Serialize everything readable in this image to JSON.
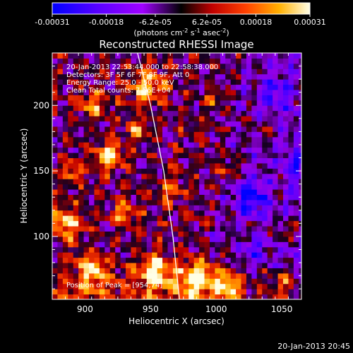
{
  "chart_data": {
    "type": "heatmap",
    "title": "Reconstructed RHESSI Image",
    "xlabel": "Heliocentric X (arcsec)",
    "ylabel": "Heliocentric Y (arcsec)",
    "xlim": [
      875,
      1065
    ],
    "ylim": [
      52,
      240
    ],
    "x_ticks": [
      900,
      950,
      1000,
      1050
    ],
    "y_ticks": [
      100,
      150,
      200
    ],
    "colorbar": {
      "min": -0.00031,
      "max": 0.00031,
      "tick_values": [
        -0.00031,
        -0.00018,
        -6.2e-05,
        6.2e-05,
        0.00018,
        0.00031
      ],
      "tick_labels": [
        "-0.00031",
        "-0.00018",
        "-6.2e-05",
        "6.2e-05",
        "0.00018",
        "0.00031"
      ],
      "unit_prefix": "(photons cm",
      "unit_exp1": "-2",
      "unit_mid": " s",
      "unit_exp2": "-1",
      "unit_mid2": " asec",
      "unit_exp3": "-2",
      "unit_suffix": ")"
    },
    "annotations": [
      "20-Jan-2013 22:53:44.000 to 22:58:38.000",
      "Detectors: 3F 5F 6F 7F 8F 9F, Att 0",
      "Energy Range: 25.0 - 50.0 keV",
      "Clean     Total counts: 7.56E+04"
    ],
    "peak_label": "Position of Peak = [954,74]",
    "peak_position": [
      954,
      74
    ],
    "limb_curve": [
      [
        940,
        240
      ],
      [
        950,
        200
      ],
      [
        960,
        150
      ],
      [
        967,
        100
      ],
      [
        972,
        52
      ]
    ],
    "hotspots": [
      {
        "x": 918,
        "y": 162,
        "strength": 1.0,
        "radius": 10
      },
      {
        "x": 905,
        "y": 200,
        "strength": 0.7,
        "radius": 10
      },
      {
        "x": 948,
        "y": 215,
        "strength": 0.75,
        "radius": 14
      },
      {
        "x": 940,
        "y": 182,
        "strength": 0.55,
        "radius": 9
      },
      {
        "x": 885,
        "y": 110,
        "strength": 0.85,
        "radius": 12
      },
      {
        "x": 930,
        "y": 118,
        "strength": 0.6,
        "radius": 10
      },
      {
        "x": 905,
        "y": 75,
        "strength": 0.8,
        "radius": 12
      },
      {
        "x": 954,
        "y": 74,
        "strength": 1.0,
        "radius": 12
      },
      {
        "x": 985,
        "y": 68,
        "strength": 0.95,
        "radius": 14
      },
      {
        "x": 1010,
        "y": 62,
        "strength": 0.8,
        "radius": 10
      },
      {
        "x": 965,
        "y": 135,
        "strength": 0.5,
        "radius": 9
      },
      {
        "x": 1010,
        "y": 150,
        "strength": 0.45,
        "radius": 8
      },
      {
        "x": 1000,
        "y": 205,
        "strength": 0.45,
        "radius": 8
      },
      {
        "x": 1040,
        "y": 180,
        "strength": 0.4,
        "radius": 7
      },
      {
        "x": 1055,
        "y": 105,
        "strength": 0.45,
        "radius": 8
      },
      {
        "x": 890,
        "y": 150,
        "strength": 0.65,
        "radius": 8
      },
      {
        "x": 1050,
        "y": 65,
        "strength": 0.5,
        "radius": 8
      }
    ],
    "coldspots": [
      {
        "x": 1025,
        "y": 130,
        "strength": 0.8,
        "radius": 14
      },
      {
        "x": 1045,
        "y": 210,
        "strength": 0.5,
        "radius": 12
      },
      {
        "x": 1030,
        "y": 90,
        "strength": 0.45,
        "radius": 10
      },
      {
        "x": 1000,
        "y": 100,
        "strength": 0.4,
        "radius": 8
      },
      {
        "x": 1060,
        "y": 155,
        "strength": 0.5,
        "radius": 8
      }
    ],
    "grid": false
  },
  "footer": {
    "timestamp": "20-Jan-2013 20:45"
  }
}
